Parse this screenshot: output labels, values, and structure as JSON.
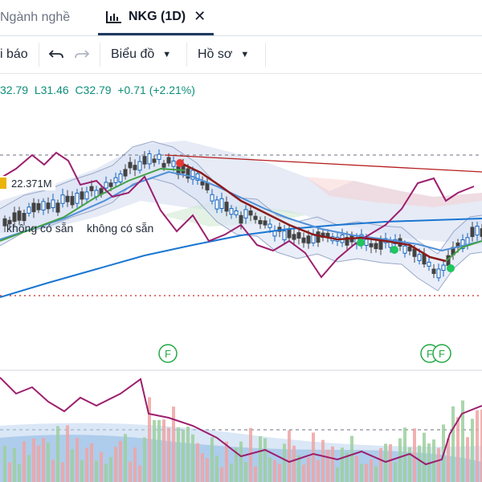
{
  "tabs": [
    {
      "label": "Ngành nghề",
      "active": false
    },
    {
      "label": "NKG (1D)",
      "active": true,
      "close_icon": "close-icon"
    }
  ],
  "toolbar": {
    "report_label": "i báo",
    "undo_icon": "undo-icon",
    "redo_icon": "redo-icon",
    "chart_label": "Biểu đồ",
    "profile_label": "Hồ sơ",
    "dropdown_icon": "chevron-down-icon"
  },
  "ohlc": {
    "open": "32.79",
    "low": "L31.46",
    "close": "C32.79",
    "change": "+0.71",
    "change_pct": "(+2.21%)"
  },
  "volume_label": "22.371M",
  "indicator_status": [
    "không có sẵn",
    "không có sẵn"
  ],
  "event_marker_label": "F",
  "colors": {
    "up": "#0e8f7a",
    "candle_up": "#1565c0",
    "candle_down": "#424242",
    "ma_short": "#c62828",
    "ma_mid": "#43a047",
    "ma_long": "#1976d2",
    "rsi": "#9c1f6e",
    "trend_line": "#b71c1c"
  },
  "chart_data": {
    "type": "candlestick",
    "symbol": "NKG",
    "interval": "1D"
  }
}
